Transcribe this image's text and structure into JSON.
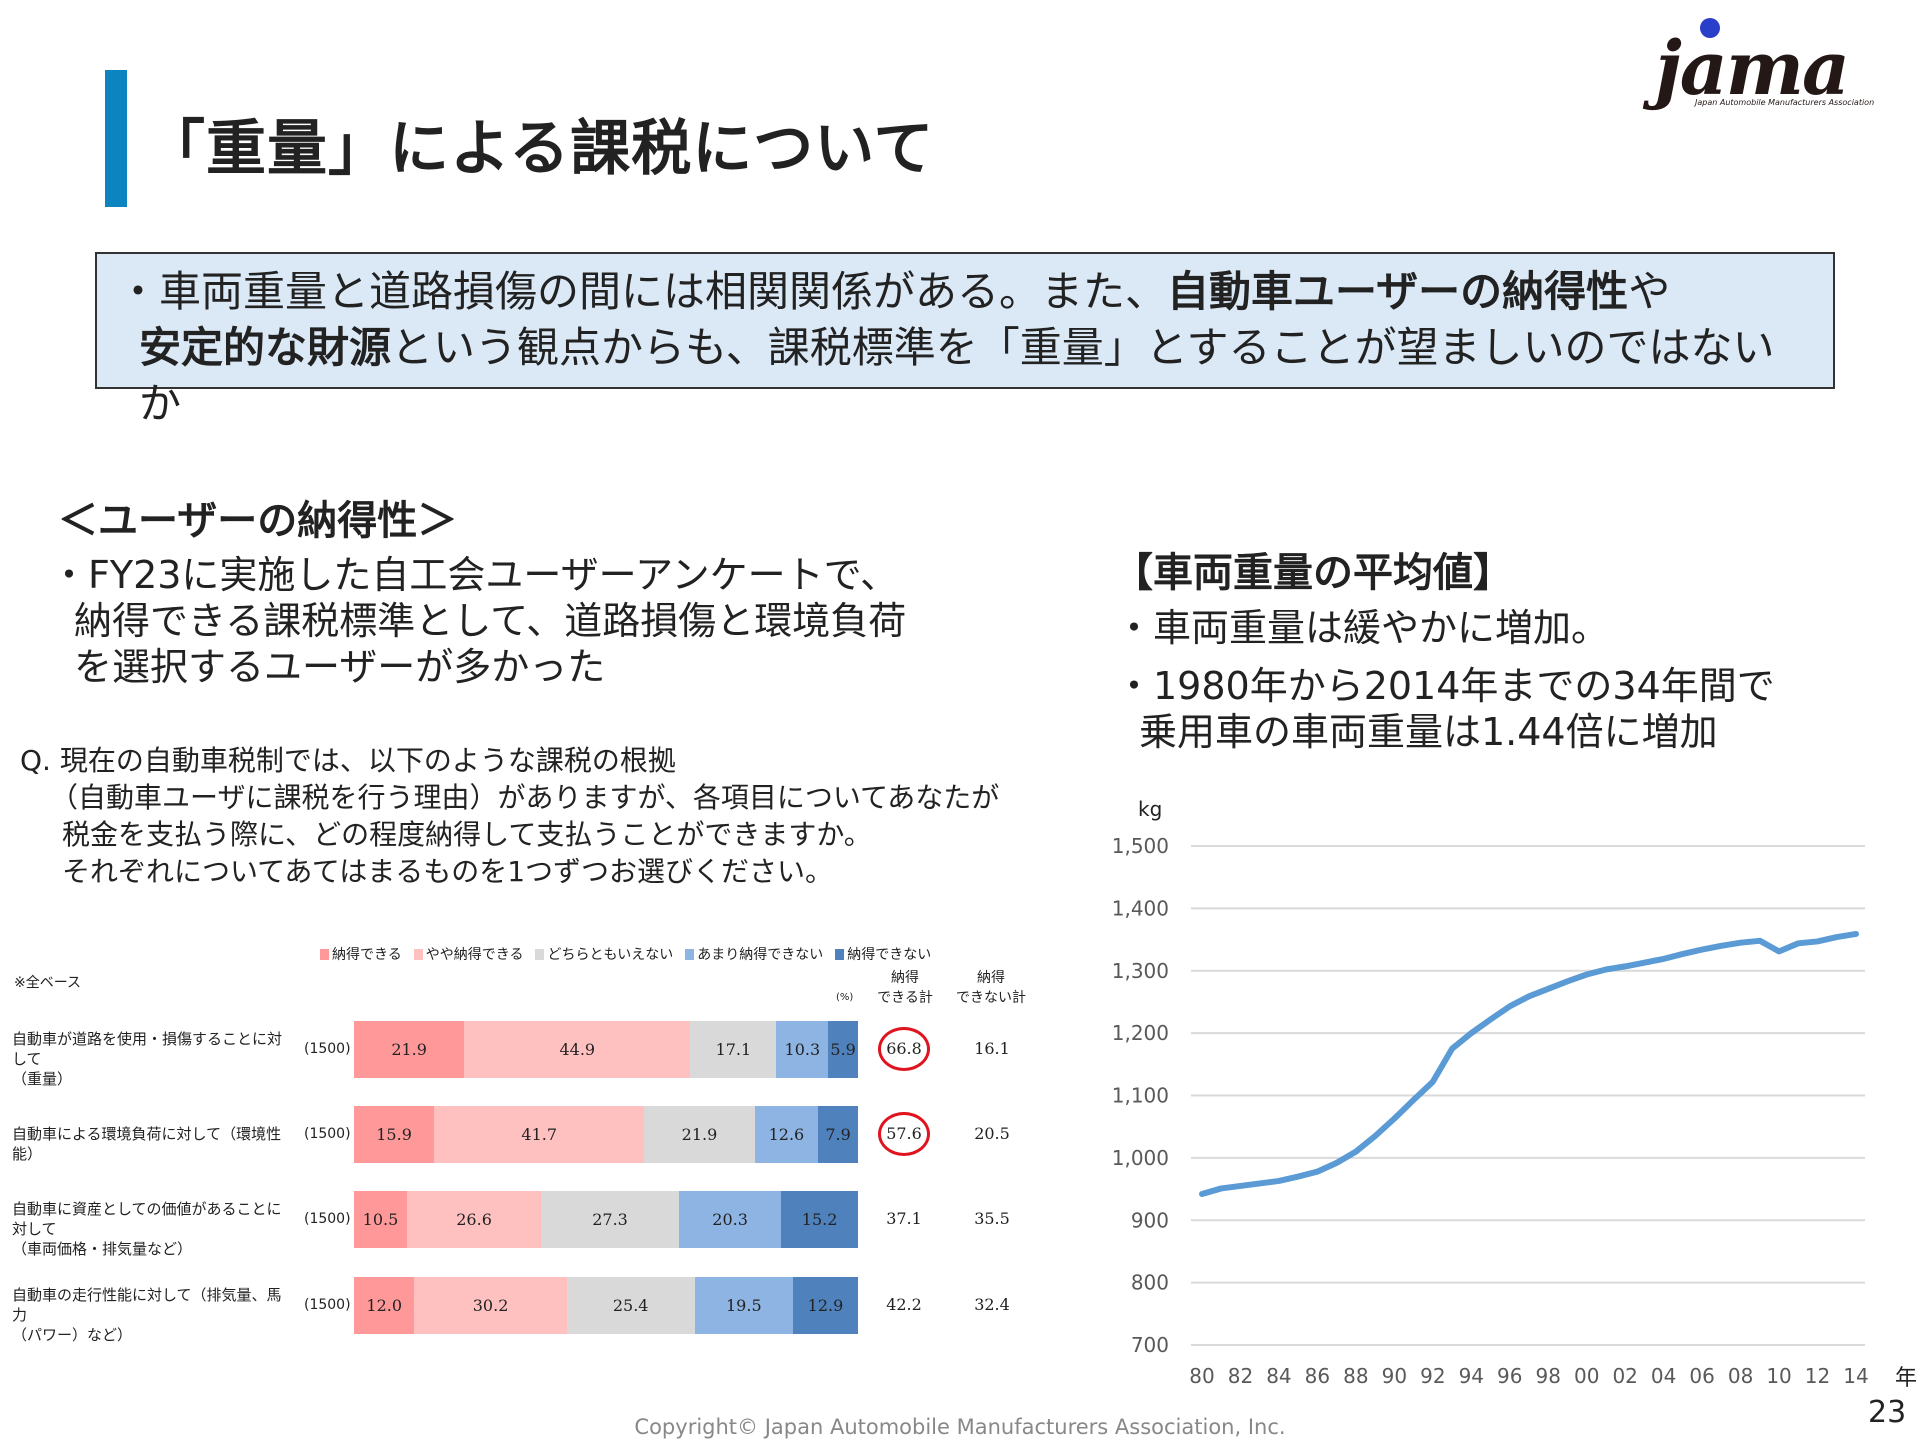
{
  "header": {
    "title": "「重量」による課税について",
    "logo_text": "jama",
    "logo_subtitle": "Japan Automobile Manufacturers Association"
  },
  "summary": {
    "line1_a": "・車両重量と道路損傷の間には相関関係がある。また、",
    "line1_b": "自動車ユーザーの納得性",
    "line1_c": "や",
    "line2_a": "安定的な財源",
    "line2_b": "という観点からも、課税標準を「重量」とすることが望ましいのではないか"
  },
  "left": {
    "heading": "＜ユーザーの納得性＞",
    "bullet_lines": [
      "・FY23に実施した自工会ユーザーアンケートで、",
      "納得できる課税標準として、道路損傷と環境負荷",
      "を選択するユーザーが多かった"
    ],
    "question_lines": [
      "Q. 現在の自動車税制では、以下のような課税の根拠",
      "（自動車ユーザに課税を行う理由）がありますが、各項目についてあなたが",
      "税金を支払う際に、どの程度納得して支払うことができますか。",
      "それぞれについてあてはまるものを1つずつお選びください。"
    ],
    "base_note": "※全ベース",
    "percent_note": "(%)",
    "col_headers": [
      "納得\nできる計",
      "納得\nできない計"
    ]
  },
  "chart_data": [
    {
      "type": "bar",
      "stacked": true,
      "orientation": "horizontal",
      "legend_position": "top",
      "series": [
        {
          "name": "納得できる",
          "color": "#ff9999",
          "values": [
            21.9,
            15.9,
            10.5,
            12.0
          ]
        },
        {
          "name": "やや納得できる",
          "color": "#ffc0c0",
          "values": [
            44.9,
            41.7,
            26.6,
            30.2
          ]
        },
        {
          "name": "どちらともいえない",
          "color": "#d9d9d9",
          "values": [
            17.1,
            21.9,
            27.3,
            25.4
          ]
        },
        {
          "name": "あまり納得できない",
          "color": "#8eb4e3",
          "values": [
            10.3,
            12.6,
            20.3,
            19.5
          ]
        },
        {
          "name": "納得できない",
          "color": "#4f81bd",
          "values": [
            5.9,
            7.9,
            15.2,
            12.9
          ]
        }
      ],
      "categories": [
        "自動車が道路を使用・損傷することに対して（重量）",
        "自動車による環境負荷に対して（環境性能）",
        "自動車に資産としての価値があることに対して（車両価格・排気量など）",
        "自動車の走行性能に対して（排気量、馬力（パワー）など）"
      ],
      "category_lines": [
        [
          "自動車が道路を使用・損傷することに対して",
          "（重量）"
        ],
        [
          "自動車による環境負荷に対して（環境性能）"
        ],
        [
          "自動車に資産としての価値があることに対して",
          "（車両価格・排気量など）"
        ],
        [
          "自動車の走行性能に対して（排気量、馬力",
          "（パワー）など）"
        ]
      ],
      "sample_sizes": [
        "(1500)",
        "(1500)",
        "(1500)",
        "(1500)"
      ],
      "agree_totals": [
        66.8,
        57.6,
        37.1,
        42.2
      ],
      "disagree_totals": [
        16.1,
        20.5,
        35.5,
        32.4
      ],
      "highlighted_agree_totals": [
        true,
        true,
        false,
        false
      ]
    },
    {
      "type": "line",
      "title": "",
      "ylabel": "kg",
      "xlabel": "年",
      "ylim": [
        700,
        1500
      ],
      "yticks": [
        "700",
        "800",
        "900",
        "1,000",
        "1,100",
        "1,200",
        "1,300",
        "1,400",
        "1,500"
      ],
      "xticks": [
        "80",
        "82",
        "84",
        "86",
        "88",
        "90",
        "92",
        "94",
        "96",
        "98",
        "00",
        "02",
        "04",
        "06",
        "08",
        "10",
        "12",
        "14"
      ],
      "grid": true,
      "color": "#5b9bd5",
      "x": [
        1980,
        1981,
        1982,
        1983,
        1984,
        1985,
        1986,
        1987,
        1988,
        1989,
        1990,
        1991,
        1992,
        1993,
        1994,
        1995,
        1996,
        1997,
        1998,
        1999,
        2000,
        2001,
        2002,
        2003,
        2004,
        2005,
        2006,
        2007,
        2008,
        2009,
        2010,
        2011,
        2012,
        2013,
        2014
      ],
      "y": [
        942,
        951,
        955,
        959,
        963,
        970,
        978,
        992,
        1010,
        1035,
        1063,
        1093,
        1122,
        1175,
        1200,
        1222,
        1243,
        1259,
        1271,
        1283,
        1294,
        1302,
        1307,
        1313,
        1319,
        1327,
        1334,
        1340,
        1345,
        1348,
        1331,
        1344,
        1347,
        1354,
        1359
      ]
    }
  ],
  "right": {
    "heading": "【車両重量の平均値】",
    "bullet_lines": [
      "・車両重量は緩やかに増加。",
      "・1980年から2014年までの34年間で",
      "乗用車の車両重量は1.44倍に増加"
    ]
  },
  "footer": {
    "copyright": "Copyright© Japan Automobile Manufacturers Association, Inc.",
    "page_number": "23"
  }
}
